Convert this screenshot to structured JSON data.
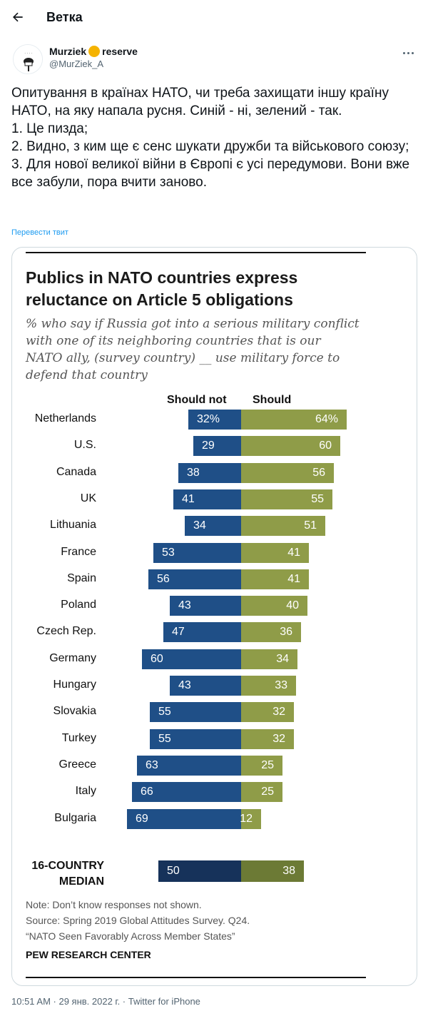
{
  "header": {
    "title": "Ветка",
    "back_icon": "arrow-left-icon"
  },
  "tweet": {
    "author_name": "Murziek",
    "author_suffix": "reserve",
    "author_handle": "@MurZiek_A",
    "lines": [
      "Опитування в країнах НАТО, чи треба захищати іншу країну НАТО, на яку напала русня. Синій - ні, зелений - так.",
      "1. Це пизда;",
      "2. Видно, з ким ще є сенс шукати дружби та військового союзу;",
      "3. Для нової великої війни в Європі є усі передумови. Вони вже все забули, пора вчити заново."
    ],
    "translate_label": "Перевести твит",
    "timestamp": "10:51 AM · 29 янв. 2022 г. · Twitter for iPhone"
  },
  "chart_data": {
    "type": "bar",
    "title": "Publics in NATO countries express reluctance on Article 5 obligations",
    "subtitle": "% who say if Russia got into a serious military conflict with one of its neighboring countries that is our NATO ally, (survey country) __ use military force to defend that country",
    "legend": [
      "Should not",
      "Should"
    ],
    "categories": [
      "Netherlands",
      "U.S.",
      "Canada",
      "UK",
      "Lithuania",
      "France",
      "Spain",
      "Poland",
      "Czech Rep.",
      "Germany",
      "Hungary",
      "Slovakia",
      "Turkey",
      "Greece",
      "Italy",
      "Bulgaria"
    ],
    "series": [
      {
        "name": "Should not",
        "color": "#1f4f87",
        "values": [
          32,
          29,
          38,
          41,
          34,
          53,
          56,
          43,
          47,
          60,
          43,
          55,
          55,
          63,
          66,
          69
        ]
      },
      {
        "name": "Should",
        "color": "#8f9c48",
        "values": [
          64,
          60,
          56,
          55,
          51,
          41,
          41,
          40,
          36,
          34,
          33,
          32,
          32,
          25,
          25,
          12
        ]
      }
    ],
    "first_row_suffix": "%",
    "median": {
      "label_line1": "16-COUNTRY",
      "label_line2": "MEDIAN",
      "should_not": 50,
      "should": 38
    },
    "notes": [
      "Note: Don’t know responses not shown.",
      "Source: Spring 2019 Global Attitudes Survey. Q24.",
      "“NATO Seen Favorably Across Member States”"
    ],
    "source_brand": "PEW RESEARCH CENTER"
  }
}
